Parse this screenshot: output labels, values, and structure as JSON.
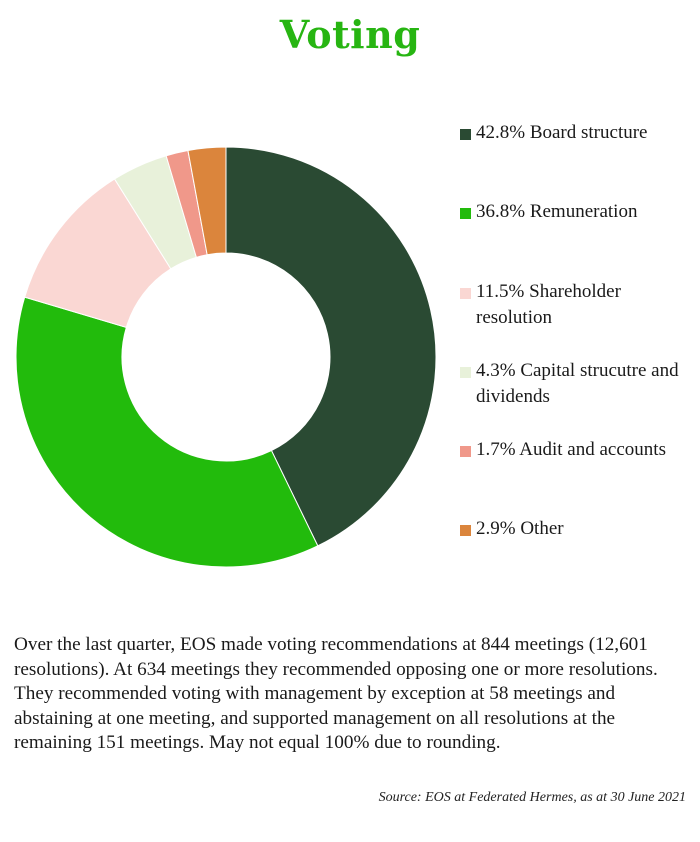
{
  "title": "Voting",
  "chart_data": {
    "type": "pie",
    "variant": "donut",
    "slices": [
      {
        "label": "42.8% Board structure",
        "value": 42.8,
        "color": "#2a4a33"
      },
      {
        "label": "36.8% Remuneration",
        "value": 36.8,
        "color": "#22bb0c"
      },
      {
        "label": "11.5% Shareholder resolution",
        "value": 11.5,
        "color": "#fad7d3"
      },
      {
        "label": "4.3% Capital strucutre and dividends",
        "value": 4.3,
        "color": "#e8f1da"
      },
      {
        "label": "1.7% Audit and accounts",
        "value": 1.7,
        "color": "#f0988a"
      },
      {
        "label": "2.9% Other",
        "value": 2.9,
        "color": "#db853c"
      }
    ],
    "legend_position": "right"
  },
  "note": "Over the last quarter, EOS made voting recommendations at 844 meetings (12,601 resolutions). At 634 meetings they recommended opposing one or more resolutions.  They recommended voting with management by exception at 58 meetings and abstaining at one meeting, and supported management on all resolutions at the remaining 151 meetings. May not equal 100% due to rounding.",
  "source": "Source: EOS at Federated Hermes, as at 30 June 2021"
}
